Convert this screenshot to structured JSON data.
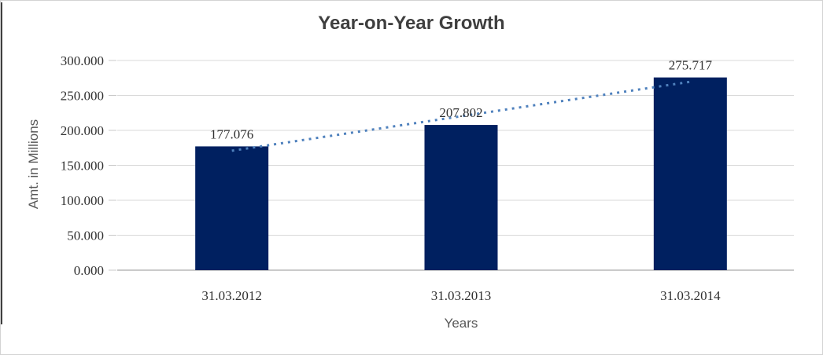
{
  "chart_data": {
    "type": "bar",
    "title": "Year-on-Year Growth",
    "xlabel": "Years",
    "ylabel": "Amt. in Millions",
    "categories": [
      "31.03.2012",
      "31.03.2013",
      "31.03.2014"
    ],
    "values": [
      177.076,
      207.802,
      275.717
    ],
    "value_labels": [
      "177.076",
      "207.802",
      "275.717"
    ],
    "y_tick_labels": [
      "0.000",
      "50.000",
      "100.000",
      "150.000",
      "200.000",
      "250.000",
      "300.000"
    ],
    "ylim": [
      0,
      300
    ],
    "y_step": 50,
    "grid": true,
    "legend": "none",
    "trendline": {
      "type": "linear",
      "style": "dotted"
    },
    "colors": {
      "bar": "#002060",
      "trendline": "#4f81bd",
      "gridline": "#d9d9d9",
      "baseline": "#b9b9b9",
      "tick": "#c9c9c9",
      "title_text": "#3f3f3f",
      "number_text": "#303030",
      "axis_title_text": "#595959",
      "frame_border": "#d3d3d3",
      "left_edge_line": "#000000",
      "background": "#ffffff"
    }
  }
}
